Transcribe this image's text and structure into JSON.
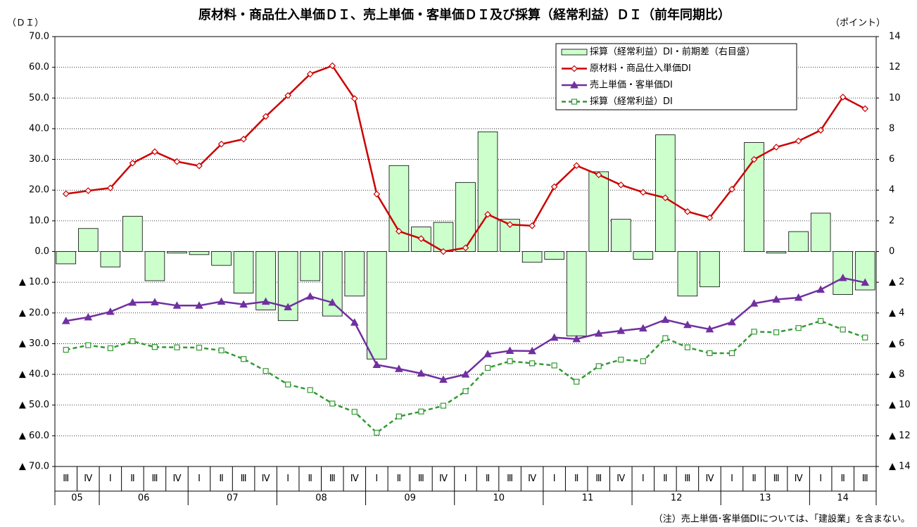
{
  "chart_data": {
    "type": "bar_line",
    "title": "原材料・商品仕入単価ＤＩ、売上単価・客単価ＤＩ及び採算（経常利益）ＤＩ（前年同期比）",
    "y_label": "（ＤＩ）",
    "y2_label": "（ポイント）",
    "note": "（注）売上単価･客単価DIについては、「建設業」を含まない。",
    "categories": [
      "Ⅲ",
      "Ⅳ",
      "Ⅰ",
      "Ⅱ",
      "Ⅲ",
      "Ⅳ",
      "Ⅰ",
      "Ⅱ",
      "Ⅲ",
      "Ⅳ",
      "Ⅰ",
      "Ⅱ",
      "Ⅲ",
      "Ⅳ",
      "Ⅰ",
      "Ⅱ",
      "Ⅲ",
      "Ⅳ",
      "Ⅰ",
      "Ⅱ",
      "Ⅲ",
      "Ⅳ",
      "Ⅰ",
      "Ⅱ",
      "Ⅲ",
      "Ⅳ",
      "Ⅰ",
      "Ⅱ",
      "Ⅲ",
      "Ⅳ",
      "Ⅰ",
      "Ⅱ",
      "Ⅲ",
      "Ⅳ",
      "Ⅰ",
      "Ⅱ",
      "Ⅲ"
    ],
    "year_groups": [
      {
        "label": "05",
        "count": 2
      },
      {
        "label": "06",
        "count": 4
      },
      {
        "label": "07",
        "count": 4
      },
      {
        "label": "08",
        "count": 4
      },
      {
        "label": "09",
        "count": 4
      },
      {
        "label": "10",
        "count": 4
      },
      {
        "label": "11",
        "count": 4
      },
      {
        "label": "12",
        "count": 4
      },
      {
        "label": "13",
        "count": 4
      },
      {
        "label": "14",
        "count": 3
      }
    ],
    "ylim": [
      -70,
      70
    ],
    "yticks": [
      {
        "value": 70,
        "label": "70.0"
      },
      {
        "value": 60,
        "label": "60.0"
      },
      {
        "value": 50,
        "label": "50.0"
      },
      {
        "value": 40,
        "label": "40.0"
      },
      {
        "value": 30,
        "label": "30.0"
      },
      {
        "value": 20,
        "label": "20.0"
      },
      {
        "value": 10,
        "label": "10.0"
      },
      {
        "value": 0,
        "label": "0.0"
      },
      {
        "value": -10,
        "label": "▲ 10.0"
      },
      {
        "value": -20,
        "label": "▲ 20.0"
      },
      {
        "value": -30,
        "label": "▲ 30.0"
      },
      {
        "value": -40,
        "label": "▲ 40.0"
      },
      {
        "value": -50,
        "label": "▲ 50.0"
      },
      {
        "value": -60,
        "label": "▲ 60.0"
      },
      {
        "value": -70,
        "label": "▲ 70.0"
      }
    ],
    "y2lim": [
      -14,
      14
    ],
    "y2ticks": [
      14,
      12,
      10,
      8,
      6,
      4,
      2,
      0,
      {
        "value": -2,
        "label": "▲ 2"
      },
      {
        "value": -4,
        "label": "▲ 4"
      },
      {
        "value": -6,
        "label": "▲ 6"
      },
      {
        "value": -8,
        "label": "▲ 8"
      },
      {
        "value": -10,
        "label": "▲ 10"
      },
      {
        "value": -12,
        "label": "▲ 12"
      },
      {
        "value": -14,
        "label": "▲ 14"
      }
    ],
    "grid": true,
    "series": [
      {
        "name": "採算（経常利益）DI・前期差（右目盛）",
        "kind": "bar",
        "axis": "y2",
        "color": "#ccffcc",
        "values": [
          -0.8,
          1.5,
          -1.0,
          2.3,
          -1.9,
          -0.1,
          -0.2,
          -0.9,
          -2.7,
          -3.8,
          -4.5,
          -1.9,
          -4.2,
          -2.9,
          -7.0,
          5.6,
          1.6,
          1.9,
          4.5,
          7.8,
          2.1,
          -0.7,
          -0.5,
          -5.5,
          5.2,
          2.1,
          -0.5,
          7.6,
          -2.9,
          -2.3,
          0,
          7.1,
          -0.1,
          1.3,
          2.5,
          -2.8,
          -2.5
        ]
      },
      {
        "name": "原材料・商品仕入単価DI",
        "kind": "line",
        "marker": "diamond",
        "dashed": false,
        "color": "#cc0000",
        "values": [
          18.8,
          19.8,
          20.7,
          28.8,
          32.5,
          29.3,
          27.9,
          35.0,
          36.6,
          44.0,
          50.8,
          57.8,
          60.5,
          49.8,
          18.7,
          6.6,
          4.2,
          0.0,
          1.2,
          12.1,
          8.8,
          8.4,
          21.1,
          28.0,
          25.0,
          21.7,
          19.3,
          17.5,
          13.0,
          11.0,
          20.3,
          30.0,
          34.0,
          36.0,
          39.5,
          50.3,
          46.5
        ]
      },
      {
        "name": "売上単価・客単価DI",
        "kind": "line",
        "marker": "triangle",
        "dashed": false,
        "color": "#7030a0",
        "values": [
          -22.6,
          -21.4,
          -19.6,
          -16.6,
          -16.5,
          -17.6,
          -17.6,
          -16.3,
          -17.2,
          -16.3,
          -18.1,
          -14.6,
          -16.6,
          -23.1,
          -36.9,
          -38.2,
          -39.7,
          -41.7,
          -40.0,
          -33.4,
          -32.3,
          -32.4,
          -28.0,
          -28.5,
          -26.7,
          -25.8,
          -25.0,
          -22.2,
          -23.9,
          -25.3,
          -23.0,
          -16.9,
          -15.6,
          -15.0,
          -12.4,
          -8.6,
          -10.1
        ]
      },
      {
        "name": "採算（経常利益）DI",
        "kind": "line",
        "marker": "square",
        "dashed": true,
        "color": "#339933",
        "values": [
          -32.0,
          -30.5,
          -31.5,
          -29.2,
          -31.1,
          -31.2,
          -31.3,
          -32.2,
          -35.0,
          -38.9,
          -43.3,
          -45.1,
          -49.5,
          -52.2,
          -59.0,
          -53.7,
          -52.1,
          -50.2,
          -45.5,
          -37.9,
          -35.7,
          -36.4,
          -37.1,
          -42.4,
          -37.3,
          -35.2,
          -35.7,
          -28.2,
          -31.2,
          -33.1,
          -33.1,
          -26.1,
          -26.3,
          -24.9,
          -22.6,
          -25.4,
          -28.0
        ]
      }
    ]
  }
}
